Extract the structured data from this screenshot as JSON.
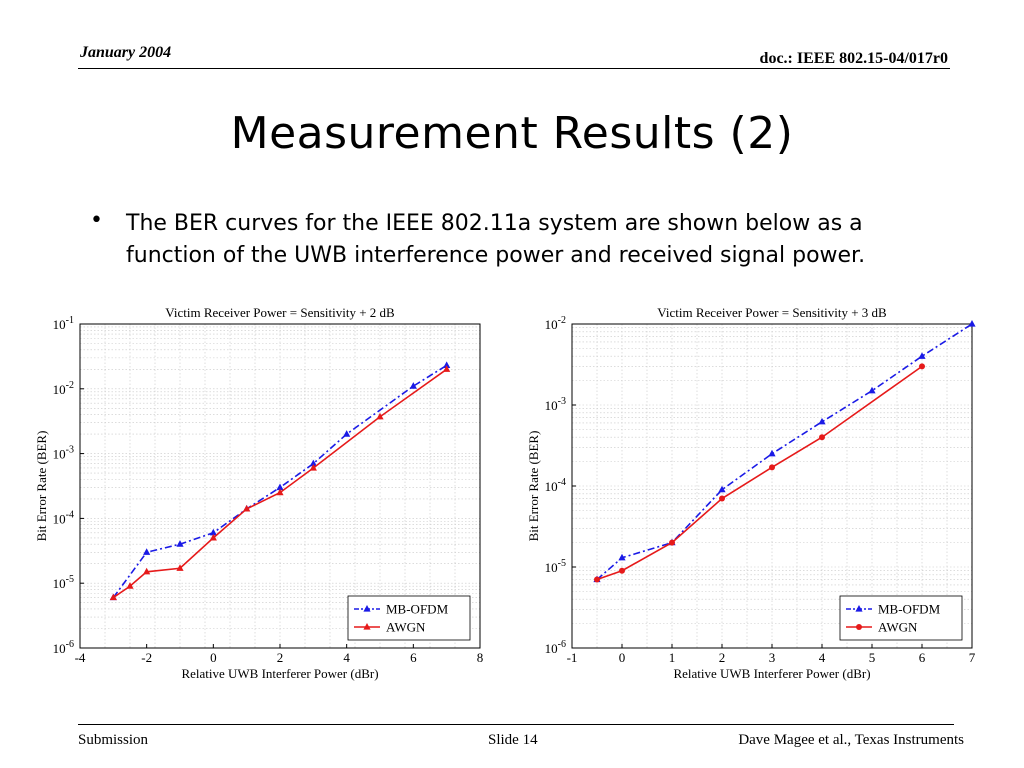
{
  "header": {
    "date": "January 2004",
    "doc": "doc.: IEEE 802.15-04/017r0"
  },
  "title": "Measurement Results (2)",
  "bullet": "The BER curves for the IEEE 802.11a system are shown below as a function of the UWB interference power and received signal power.",
  "footer": {
    "left": "Submission",
    "center": "Slide 14",
    "right": "Dave Magee et al., Texas Instruments"
  },
  "colors": {
    "mb_ofdm": "#1a1ae6",
    "awgn": "#e61a1a",
    "grid": "#c8c8c8"
  },
  "chart_data": [
    {
      "type": "line",
      "title": "Victim Receiver Power = Sensitivity + 2 dB",
      "xlabel": "Relative UWB Interferer Power (dBr)",
      "ylabel": "Bit Error Rate (BER)",
      "xlim": [
        -4,
        8
      ],
      "ylim": [
        1e-06,
        0.1
      ],
      "yscale": "log",
      "xticks": [
        "-4",
        "-2",
        "0",
        "2",
        "4",
        "6",
        "8"
      ],
      "yticks": [
        {
          "base": "10",
          "exp": "-1"
        },
        {
          "base": "10",
          "exp": "-2"
        },
        {
          "base": "10",
          "exp": "-3"
        },
        {
          "base": "10",
          "exp": "-4"
        },
        {
          "base": "10",
          "exp": "-5"
        },
        {
          "base": "10",
          "exp": "-6"
        }
      ],
      "grid": true,
      "legend": "bottom-right",
      "series": [
        {
          "name": "MB-OFDM",
          "style": "dash-dot",
          "marker": "triangle",
          "x": [
            -3,
            -2,
            -1,
            0,
            1,
            2,
            3,
            4,
            6,
            7
          ],
          "y": [
            6e-06,
            3e-05,
            4e-05,
            6e-05,
            0.00014,
            0.0003,
            0.0007,
            0.002,
            0.011,
            0.023
          ]
        },
        {
          "name": "AWGN",
          "style": "solid",
          "marker": "triangle",
          "x": [
            -3,
            -2.5,
            -2,
            -1,
            0,
            1,
            2,
            3,
            5,
            7
          ],
          "y": [
            6e-06,
            9e-06,
            1.5e-05,
            1.7e-05,
            5e-05,
            0.00014,
            0.00025,
            0.0006,
            0.0037,
            0.02
          ]
        }
      ]
    },
    {
      "type": "line",
      "title": "Victim Receiver Power = Sensitivity + 3 dB",
      "xlabel": "Relative UWB Interferer Power (dBr)",
      "ylabel": "Bit Error Rate (BER)",
      "xlim": [
        -1,
        7
      ],
      "ylim": [
        1e-06,
        0.01
      ],
      "yscale": "log",
      "xticks": [
        "-1",
        "0",
        "1",
        "2",
        "3",
        "4",
        "5",
        "6",
        "7"
      ],
      "yticks": [
        {
          "base": "10",
          "exp": "-2"
        },
        {
          "base": "10",
          "exp": "-3"
        },
        {
          "base": "10",
          "exp": "-4"
        },
        {
          "base": "10",
          "exp": "-5"
        },
        {
          "base": "10",
          "exp": "-6"
        }
      ],
      "grid": true,
      "legend": "bottom-right",
      "series": [
        {
          "name": "MB-OFDM",
          "style": "dash-dot",
          "marker": "triangle",
          "x": [
            -0.5,
            0,
            1,
            2,
            3,
            4,
            5,
            6,
            7
          ],
          "y": [
            7e-06,
            1.3e-05,
            2e-05,
            9e-05,
            0.00025,
            0.00062,
            0.0015,
            0.004,
            0.01
          ]
        },
        {
          "name": "AWGN",
          "style": "solid",
          "marker": "circle",
          "x": [
            -0.5,
            0,
            1,
            2,
            3,
            4,
            6
          ],
          "y": [
            7e-06,
            9e-06,
            2e-05,
            7e-05,
            0.00017,
            0.0004,
            0.003
          ]
        }
      ]
    }
  ]
}
